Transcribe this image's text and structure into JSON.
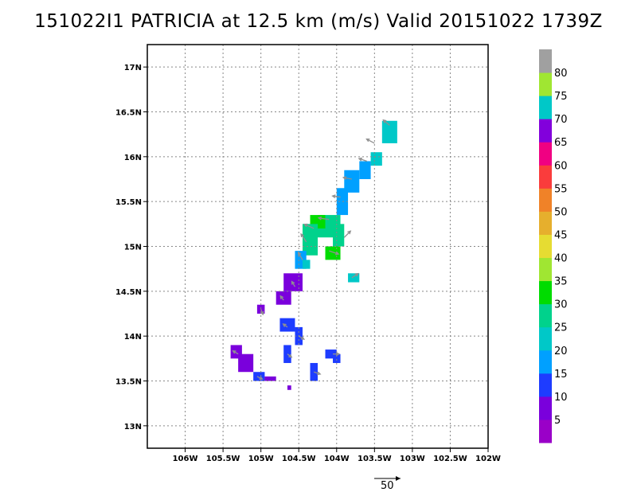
{
  "title": "151022I1 PATRICIA at 12.5 km (m/s) Valid 20151022 1739Z",
  "map": {
    "lon_range": [
      -106.5,
      -102.0
    ],
    "lat_range": [
      12.75,
      17.25
    ],
    "x_ticks": [
      {
        "lon": -106.0,
        "label": "106W"
      },
      {
        "lon": -105.5,
        "label": "105.5W"
      },
      {
        "lon": -105.0,
        "label": "105W"
      },
      {
        "lon": -104.5,
        "label": "104.5W"
      },
      {
        "lon": -104.0,
        "label": "104W"
      },
      {
        "lon": -103.5,
        "label": "103.5W"
      },
      {
        "lon": -103.0,
        "label": "103W"
      },
      {
        "lon": -102.5,
        "label": "102.5W"
      },
      {
        "lon": -102.0,
        "label": "102W"
      }
    ],
    "y_ticks": [
      {
        "lat": 13.0,
        "label": "13N"
      },
      {
        "lat": 13.5,
        "label": "13.5N"
      },
      {
        "lat": 14.0,
        "label": "14N"
      },
      {
        "lat": 14.5,
        "label": "14.5N"
      },
      {
        "lat": 15.0,
        "label": "15N"
      },
      {
        "lat": 15.5,
        "label": "15.5N"
      },
      {
        "lat": 16.0,
        "label": "16N"
      },
      {
        "lat": 16.5,
        "label": "16.5N"
      },
      {
        "lat": 17.0,
        "label": "17N"
      }
    ],
    "grid": true,
    "wind_blocks": [
      {
        "lon1": -103.4,
        "lon2": -103.2,
        "lat1": 16.15,
        "lat2": 16.4,
        "speed": 22
      },
      {
        "lon1": -103.55,
        "lon2": -103.4,
        "lat1": 15.9,
        "lat2": 16.05,
        "speed": 22
      },
      {
        "lon1": -103.7,
        "lon2": -103.55,
        "lat1": 15.75,
        "lat2": 15.95,
        "speed": 17
      },
      {
        "lon1": -103.9,
        "lon2": -103.7,
        "lat1": 15.6,
        "lat2": 15.85,
        "speed": 17
      },
      {
        "lon1": -104.0,
        "lon2": -103.85,
        "lat1": 15.35,
        "lat2": 15.65,
        "speed": 19
      },
      {
        "lon1": -104.25,
        "lon2": -103.95,
        "lat1": 15.1,
        "lat2": 15.35,
        "speed": 28
      },
      {
        "lon1": -104.35,
        "lon2": -104.15,
        "lat1": 15.2,
        "lat2": 15.35,
        "speed": 30
      },
      {
        "lon1": -104.45,
        "lon2": -104.25,
        "lat1": 14.9,
        "lat2": 15.25,
        "speed": 27
      },
      {
        "lon1": -104.15,
        "lon2": -103.95,
        "lat1": 14.85,
        "lat2": 15.0,
        "speed": 32
      },
      {
        "lon1": -104.05,
        "lon2": -103.9,
        "lat1": 15.0,
        "lat2": 15.25,
        "speed": 26
      },
      {
        "lon1": -104.55,
        "lon2": -104.4,
        "lat1": 14.75,
        "lat2": 14.95,
        "speed": 18
      },
      {
        "lon1": -104.45,
        "lon2": -104.35,
        "lat1": 14.75,
        "lat2": 14.85,
        "speed": 22
      },
      {
        "lon1": -103.85,
        "lon2": -103.7,
        "lat1": 14.6,
        "lat2": 14.7,
        "speed": 20
      },
      {
        "lon1": -104.7,
        "lon2": -104.45,
        "lat1": 14.5,
        "lat2": 14.7,
        "speed": 7
      },
      {
        "lon1": -104.8,
        "lon2": -104.6,
        "lat1": 14.35,
        "lat2": 14.5,
        "speed": 7
      },
      {
        "lon1": -105.05,
        "lon2": -104.95,
        "lat1": 14.25,
        "lat2": 14.35,
        "speed": 7
      },
      {
        "lon1": -104.75,
        "lon2": -104.55,
        "lat1": 14.05,
        "lat2": 14.2,
        "speed": 12
      },
      {
        "lon1": -104.55,
        "lon2": -104.45,
        "lat1": 13.9,
        "lat2": 14.1,
        "speed": 12
      },
      {
        "lon1": -104.7,
        "lon2": -104.6,
        "lat1": 13.7,
        "lat2": 13.9,
        "speed": 12
      },
      {
        "lon1": -104.15,
        "lon2": -104.0,
        "lat1": 13.75,
        "lat2": 13.85,
        "speed": 12
      },
      {
        "lon1": -104.05,
        "lon2": -103.95,
        "lat1": 13.7,
        "lat2": 13.8,
        "speed": 12
      },
      {
        "lon1": -104.35,
        "lon2": -104.25,
        "lat1": 13.5,
        "lat2": 13.7,
        "speed": 12
      },
      {
        "lon1": -105.4,
        "lon2": -105.25,
        "lat1": 13.75,
        "lat2": 13.9,
        "speed": 7
      },
      {
        "lon1": -105.3,
        "lon2": -105.1,
        "lat1": 13.6,
        "lat2": 13.8,
        "speed": 7
      },
      {
        "lon1": -105.1,
        "lon2": -104.95,
        "lat1": 13.5,
        "lat2": 13.6,
        "speed": 12
      },
      {
        "lon1": -104.95,
        "lon2": -104.8,
        "lat1": 13.5,
        "lat2": 13.55,
        "speed": 7
      },
      {
        "lon1": -104.65,
        "lon2": -104.6,
        "lat1": 13.4,
        "lat2": 13.45,
        "speed": 7
      }
    ],
    "wind_vectors": [
      {
        "lon": -103.3,
        "lat": 16.35,
        "u": -12,
        "v": 10
      },
      {
        "lon": -103.5,
        "lat": 16.15,
        "u": -15,
        "v": 8
      },
      {
        "lon": -103.6,
        "lat": 15.95,
        "u": -15,
        "v": 5
      },
      {
        "lon": -103.8,
        "lat": 15.75,
        "u": -16,
        "v": 3
      },
      {
        "lon": -103.95,
        "lat": 15.55,
        "u": -15,
        "v": 2
      },
      {
        "lon": -104.1,
        "lat": 15.3,
        "u": -20,
        "v": 3
      },
      {
        "lon": -104.3,
        "lat": 15.2,
        "u": -18,
        "v": 8
      },
      {
        "lon": -104.4,
        "lat": 15.05,
        "u": -10,
        "v": 15
      },
      {
        "lon": -104.1,
        "lat": 14.95,
        "u": 18,
        "v": -6
      },
      {
        "lon": -103.9,
        "lat": 15.1,
        "u": 12,
        "v": 12
      },
      {
        "lon": -104.45,
        "lat": 14.85,
        "u": -8,
        "v": 14
      },
      {
        "lon": -103.8,
        "lat": 14.65,
        "u": 12,
        "v": 8
      },
      {
        "lon": -104.55,
        "lat": 14.55,
        "u": -6,
        "v": 10
      },
      {
        "lon": -104.7,
        "lat": 14.4,
        "u": -6,
        "v": 8
      },
      {
        "lon": -105.0,
        "lat": 14.3,
        "u": 4,
        "v": -10
      },
      {
        "lon": -104.65,
        "lat": 14.1,
        "u": -8,
        "v": 6
      },
      {
        "lon": -104.5,
        "lat": 14.0,
        "u": 10,
        "v": -6
      },
      {
        "lon": -104.65,
        "lat": 13.8,
        "u": 8,
        "v": -6
      },
      {
        "lon": -104.05,
        "lat": 13.8,
        "u": 12,
        "v": 0
      },
      {
        "lon": -104.3,
        "lat": 13.6,
        "u": 12,
        "v": -4
      },
      {
        "lon": -105.3,
        "lat": 13.8,
        "u": -10,
        "v": 6
      },
      {
        "lon": -105.05,
        "lat": 13.55,
        "u": 10,
        "v": -5
      }
    ]
  },
  "colorbar": {
    "levels": [
      {
        "label": "5",
        "color": "#9a00c8"
      },
      {
        "label": "10",
        "color": "#7a00dc"
      },
      {
        "label": "15",
        "color": "#1e3cff"
      },
      {
        "label": "20",
        "color": "#00a0ff"
      },
      {
        "label": "25",
        "color": "#00c8c8"
      },
      {
        "label": "30",
        "color": "#00d28c"
      },
      {
        "label": "35",
        "color": "#00dc00"
      },
      {
        "label": "40",
        "color": "#a0e632"
      },
      {
        "label": "45",
        "color": "#e6dc32"
      },
      {
        "label": "50",
        "color": "#e6af2d"
      },
      {
        "label": "55",
        "color": "#f08228"
      },
      {
        "label": "60",
        "color": "#fa3c3c"
      },
      {
        "label": "65",
        "color": "#f00082"
      },
      {
        "label": "70",
        "color": "#8200dc"
      },
      {
        "label": "75",
        "color": "#00c8c8"
      },
      {
        "label": "80",
        "color": "#a0e632"
      },
      {
        "label": "",
        "color": "#a0a0a0"
      }
    ],
    "level_labels": [
      "5",
      "10",
      "15",
      "20",
      "25",
      "30",
      "35",
      "40",
      "45",
      "50",
      "55",
      "60",
      "65",
      "70",
      "75",
      "80"
    ],
    "label_colors": [
      "#a000c8",
      "#8c00e6",
      "#1e3cff",
      "#00a0ff",
      "#00c8c8",
      "#00d28c",
      "#00dc00",
      "#a0e632",
      "#e6dc32",
      "#e6af2d",
      "#f08228",
      "#fa3c3c",
      "#f00082",
      "#8200dc",
      "#00c8c8",
      "#a0e632",
      "#a0a0a0"
    ]
  },
  "reference_vector": {
    "label": "50"
  }
}
